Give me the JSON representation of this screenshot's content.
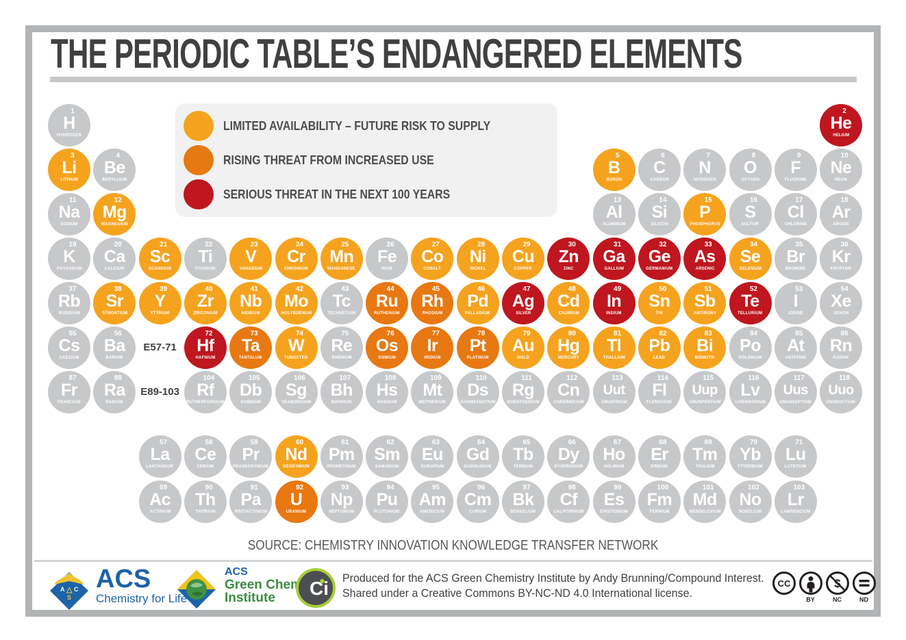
{
  "title": "THE PERIODIC TABLE’S ENDANGERED ELEMENTS",
  "colors": {
    "none": "#c7c8ca",
    "limited": "#f5a31e",
    "rising": "#e87811",
    "serious": "#bf161f"
  },
  "legend": {
    "items": [
      {
        "key": "limited",
        "color": "#f5a31e",
        "label": "LIMITED AVAILABILITY – FUTURE RISK TO SUPPLY"
      },
      {
        "key": "rising",
        "color": "#e87811",
        "label": "RISING THREAT FROM INCREASED USE"
      },
      {
        "key": "serious",
        "color": "#bf161f",
        "label": "SERIOUS THREAT IN THE NEXT 100 YEARS"
      }
    ]
  },
  "row_labels": [
    {
      "text": "E57-71",
      "r": 6,
      "c": 3
    },
    {
      "text": "E89-103",
      "r": 7,
      "c": 3
    }
  ],
  "elements": [
    {
      "n": 1,
      "s": "H",
      "name": "HYDROGEN",
      "r": 1,
      "c": 1,
      "st": "none"
    },
    {
      "n": 2,
      "s": "He",
      "name": "HELIUM",
      "r": 1,
      "c": 18,
      "st": "serious"
    },
    {
      "n": 3,
      "s": "Li",
      "name": "LITHIUM",
      "r": 2,
      "c": 1,
      "st": "limited"
    },
    {
      "n": 4,
      "s": "Be",
      "name": "BERYLLIUM",
      "r": 2,
      "c": 2,
      "st": "none"
    },
    {
      "n": 5,
      "s": "B",
      "name": "BORON",
      "r": 2,
      "c": 13,
      "st": "limited"
    },
    {
      "n": 6,
      "s": "C",
      "name": "CARBON",
      "r": 2,
      "c": 14,
      "st": "none"
    },
    {
      "n": 7,
      "s": "N",
      "name": "NITROGEN",
      "r": 2,
      "c": 15,
      "st": "none"
    },
    {
      "n": 8,
      "s": "O",
      "name": "OXYGEN",
      "r": 2,
      "c": 16,
      "st": "none"
    },
    {
      "n": 9,
      "s": "F",
      "name": "FLUORINE",
      "r": 2,
      "c": 17,
      "st": "none"
    },
    {
      "n": 10,
      "s": "Ne",
      "name": "NEON",
      "r": 2,
      "c": 18,
      "st": "none"
    },
    {
      "n": 11,
      "s": "Na",
      "name": "SODIUM",
      "r": 3,
      "c": 1,
      "st": "none"
    },
    {
      "n": 12,
      "s": "Mg",
      "name": "MAGNESIUM",
      "r": 3,
      "c": 2,
      "st": "limited"
    },
    {
      "n": 13,
      "s": "Al",
      "name": "ALUMINUM",
      "r": 3,
      "c": 13,
      "st": "none"
    },
    {
      "n": 14,
      "s": "Si",
      "name": "SILICON",
      "r": 3,
      "c": 14,
      "st": "none"
    },
    {
      "n": 15,
      "s": "P",
      "name": "PHOSPHORUS",
      "r": 3,
      "c": 15,
      "st": "limited"
    },
    {
      "n": 16,
      "s": "S",
      "name": "SULFUR",
      "r": 3,
      "c": 16,
      "st": "none"
    },
    {
      "n": 17,
      "s": "Cl",
      "name": "CHLORINE",
      "r": 3,
      "c": 17,
      "st": "none"
    },
    {
      "n": 18,
      "s": "Ar",
      "name": "ARGON",
      "r": 3,
      "c": 18,
      "st": "none"
    },
    {
      "n": 19,
      "s": "K",
      "name": "POTASSIUM",
      "r": 4,
      "c": 1,
      "st": "none"
    },
    {
      "n": 20,
      "s": "Ca",
      "name": "CALCIUM",
      "r": 4,
      "c": 2,
      "st": "none"
    },
    {
      "n": 21,
      "s": "Sc",
      "name": "SCANDIUM",
      "r": 4,
      "c": 3,
      "st": "limited"
    },
    {
      "n": 22,
      "s": "Ti",
      "name": "TITANIUM",
      "r": 4,
      "c": 4,
      "st": "none"
    },
    {
      "n": 23,
      "s": "V",
      "name": "VANADIUM",
      "r": 4,
      "c": 5,
      "st": "limited"
    },
    {
      "n": 24,
      "s": "Cr",
      "name": "CHROMIUM",
      "r": 4,
      "c": 6,
      "st": "limited"
    },
    {
      "n": 25,
      "s": "Mn",
      "name": "MANGANESE",
      "r": 4,
      "c": 7,
      "st": "limited"
    },
    {
      "n": 26,
      "s": "Fe",
      "name": "IRON",
      "r": 4,
      "c": 8,
      "st": "none"
    },
    {
      "n": 27,
      "s": "Co",
      "name": "COBALT",
      "r": 4,
      "c": 9,
      "st": "limited"
    },
    {
      "n": 28,
      "s": "Ni",
      "name": "NICKEL",
      "r": 4,
      "c": 10,
      "st": "limited"
    },
    {
      "n": 29,
      "s": "Cu",
      "name": "COPPER",
      "r": 4,
      "c": 11,
      "st": "limited"
    },
    {
      "n": 30,
      "s": "Zn",
      "name": "ZINC",
      "r": 4,
      "c": 12,
      "st": "serious"
    },
    {
      "n": 31,
      "s": "Ga",
      "name": "GALLIUM",
      "r": 4,
      "c": 13,
      "st": "serious"
    },
    {
      "n": 32,
      "s": "Ge",
      "name": "GERMANIUM",
      "r": 4,
      "c": 14,
      "st": "serious"
    },
    {
      "n": 33,
      "s": "As",
      "name": "ARSENIC",
      "r": 4,
      "c": 15,
      "st": "serious"
    },
    {
      "n": 34,
      "s": "Se",
      "name": "SELENIUM",
      "r": 4,
      "c": 16,
      "st": "limited"
    },
    {
      "n": 35,
      "s": "Br",
      "name": "BROMINE",
      "r": 4,
      "c": 17,
      "st": "none"
    },
    {
      "n": 36,
      "s": "Kr",
      "name": "KRYPTON",
      "r": 4,
      "c": 18,
      "st": "none"
    },
    {
      "n": 37,
      "s": "Rb",
      "name": "RUBIDIUM",
      "r": 5,
      "c": 1,
      "st": "none"
    },
    {
      "n": 38,
      "s": "Sr",
      "name": "STRONTIUM",
      "r": 5,
      "c": 2,
      "st": "limited"
    },
    {
      "n": 39,
      "s": "Y",
      "name": "YTTRIUM",
      "r": 5,
      "c": 3,
      "st": "limited"
    },
    {
      "n": 40,
      "s": "Zr",
      "name": "ZIRCONIUM",
      "r": 5,
      "c": 4,
      "st": "limited"
    },
    {
      "n": 41,
      "s": "Nb",
      "name": "NIOBIUM",
      "r": 5,
      "c": 5,
      "st": "limited"
    },
    {
      "n": 42,
      "s": "Mo",
      "name": "MOLYBDENUM",
      "r": 5,
      "c": 6,
      "st": "limited"
    },
    {
      "n": 43,
      "s": "Tc",
      "name": "TECHNETIUM",
      "r": 5,
      "c": 7,
      "st": "none"
    },
    {
      "n": 44,
      "s": "Ru",
      "name": "RUTHENIUM",
      "r": 5,
      "c": 8,
      "st": "rising"
    },
    {
      "n": 45,
      "s": "Rh",
      "name": "RHODIUM",
      "r": 5,
      "c": 9,
      "st": "rising"
    },
    {
      "n": 46,
      "s": "Pd",
      "name": "PALLADIUM",
      "r": 5,
      "c": 10,
      "st": "limited"
    },
    {
      "n": 47,
      "s": "Ag",
      "name": "SILVER",
      "r": 5,
      "c": 11,
      "st": "serious"
    },
    {
      "n": 48,
      "s": "Cd",
      "name": "CADMIUM",
      "r": 5,
      "c": 12,
      "st": "limited"
    },
    {
      "n": 49,
      "s": "In",
      "name": "INDIUM",
      "r": 5,
      "c": 13,
      "st": "serious"
    },
    {
      "n": 50,
      "s": "Sn",
      "name": "TIN",
      "r": 5,
      "c": 14,
      "st": "limited"
    },
    {
      "n": 51,
      "s": "Sb",
      "name": "ANTIMONY",
      "r": 5,
      "c": 15,
      "st": "limited"
    },
    {
      "n": 52,
      "s": "Te",
      "name": "TELLURIUM",
      "r": 5,
      "c": 16,
      "st": "serious"
    },
    {
      "n": 53,
      "s": "I",
      "name": "IODINE",
      "r": 5,
      "c": 17,
      "st": "none"
    },
    {
      "n": 54,
      "s": "Xe",
      "name": "XENON",
      "r": 5,
      "c": 18,
      "st": "none"
    },
    {
      "n": 55,
      "s": "Cs",
      "name": "CAESIUM",
      "r": 6,
      "c": 1,
      "st": "none"
    },
    {
      "n": 56,
      "s": "Ba",
      "name": "BARIUM",
      "r": 6,
      "c": 2,
      "st": "none"
    },
    {
      "n": 72,
      "s": "Hf",
      "name": "HAFNIUM",
      "r": 6,
      "c": 4,
      "st": "serious"
    },
    {
      "n": 73,
      "s": "Ta",
      "name": "TANTALUM",
      "r": 6,
      "c": 5,
      "st": "rising"
    },
    {
      "n": 74,
      "s": "W",
      "name": "TUNGSTEN",
      "r": 6,
      "c": 6,
      "st": "limited"
    },
    {
      "n": 75,
      "s": "Re",
      "name": "RHENIUM",
      "r": 6,
      "c": 7,
      "st": "none"
    },
    {
      "n": 76,
      "s": "Os",
      "name": "OSMIUM",
      "r": 6,
      "c": 8,
      "st": "rising"
    },
    {
      "n": 77,
      "s": "Ir",
      "name": "IRIDIUM",
      "r": 6,
      "c": 9,
      "st": "rising"
    },
    {
      "n": 78,
      "s": "Pt",
      "name": "PLATINUM",
      "r": 6,
      "c": 10,
      "st": "rising"
    },
    {
      "n": 79,
      "s": "Au",
      "name": "GOLD",
      "r": 6,
      "c": 11,
      "st": "limited"
    },
    {
      "n": 80,
      "s": "Hg",
      "name": "MERCURY",
      "r": 6,
      "c": 12,
      "st": "limited"
    },
    {
      "n": 81,
      "s": "Tl",
      "name": "THALLIUM",
      "r": 6,
      "c": 13,
      "st": "limited"
    },
    {
      "n": 82,
      "s": "Pb",
      "name": "LEAD",
      "r": 6,
      "c": 14,
      "st": "limited"
    },
    {
      "n": 83,
      "s": "Bi",
      "name": "BISMUTH",
      "r": 6,
      "c": 15,
      "st": "limited"
    },
    {
      "n": 84,
      "s": "Po",
      "name": "POLONIUM",
      "r": 6,
      "c": 16,
      "st": "none"
    },
    {
      "n": 85,
      "s": "At",
      "name": "ASTATINE",
      "r": 6,
      "c": 17,
      "st": "none"
    },
    {
      "n": 86,
      "s": "Rn",
      "name": "RADON",
      "r": 6,
      "c": 18,
      "st": "none"
    },
    {
      "n": 87,
      "s": "Fr",
      "name": "FRANCIUM",
      "r": 7,
      "c": 1,
      "st": "none"
    },
    {
      "n": 88,
      "s": "Ra",
      "name": "RADIUM",
      "r": 7,
      "c": 2,
      "st": "none"
    },
    {
      "n": 104,
      "s": "Rf",
      "name": "RUTHERFORDIUM",
      "r": 7,
      "c": 4,
      "st": "none"
    },
    {
      "n": 105,
      "s": "Db",
      "name": "DUBNIUM",
      "r": 7,
      "c": 5,
      "st": "none"
    },
    {
      "n": 106,
      "s": "Sg",
      "name": "SEABORGIUM",
      "r": 7,
      "c": 6,
      "st": "none"
    },
    {
      "n": 107,
      "s": "Bh",
      "name": "BOHRIUM",
      "r": 7,
      "c": 7,
      "st": "none"
    },
    {
      "n": 108,
      "s": "Hs",
      "name": "HASSIUM",
      "r": 7,
      "c": 8,
      "st": "none"
    },
    {
      "n": 109,
      "s": "Mt",
      "name": "MEITNERIUM",
      "r": 7,
      "c": 9,
      "st": "none"
    },
    {
      "n": 110,
      "s": "Ds",
      "name": "DARMSTADTIUM",
      "r": 7,
      "c": 10,
      "st": "none"
    },
    {
      "n": 111,
      "s": "Rg",
      "name": "ROENTGENIUM",
      "r": 7,
      "c": 11,
      "st": "none"
    },
    {
      "n": 112,
      "s": "Cn",
      "name": "COPERNICIUM",
      "r": 7,
      "c": 12,
      "st": "none"
    },
    {
      "n": 113,
      "s": "Uut",
      "name": "UNUNTRIUM",
      "r": 7,
      "c": 13,
      "st": "none"
    },
    {
      "n": 114,
      "s": "Fl",
      "name": "FLEROVIUM",
      "r": 7,
      "c": 14,
      "st": "none"
    },
    {
      "n": 115,
      "s": "Uup",
      "name": "UNUNPENTIUM",
      "r": 7,
      "c": 15,
      "st": "none"
    },
    {
      "n": 116,
      "s": "Lv",
      "name": "LIVERMORIUM",
      "r": 7,
      "c": 16,
      "st": "none"
    },
    {
      "n": 117,
      "s": "Uus",
      "name": "UNUNSEPTIUM",
      "r": 7,
      "c": 17,
      "st": "none"
    },
    {
      "n": 118,
      "s": "Uuo",
      "name": "UNUNOCTIUM",
      "r": 7,
      "c": 18,
      "st": "none"
    },
    {
      "n": 57,
      "s": "La",
      "name": "LANTHANUM",
      "r": 8,
      "c": 3,
      "st": "none"
    },
    {
      "n": 58,
      "s": "Ce",
      "name": "CERIUM",
      "r": 8,
      "c": 4,
      "st": "none"
    },
    {
      "n": 59,
      "s": "Pr",
      "name": "PRASEODYMIUM",
      "r": 8,
      "c": 5,
      "st": "none"
    },
    {
      "n": 60,
      "s": "Nd",
      "name": "NEODYMIUM",
      "r": 8,
      "c": 6,
      "st": "limited"
    },
    {
      "n": 61,
      "s": "Pm",
      "name": "PROMETHIUM",
      "r": 8,
      "c": 7,
      "st": "none"
    },
    {
      "n": 62,
      "s": "Sm",
      "name": "SAMARIUM",
      "r": 8,
      "c": 8,
      "st": "none"
    },
    {
      "n": 63,
      "s": "Eu",
      "name": "EUROPIUM",
      "r": 8,
      "c": 9,
      "st": "none"
    },
    {
      "n": 64,
      "s": "Gd",
      "name": "GADOLINIUM",
      "r": 8,
      "c": 10,
      "st": "none"
    },
    {
      "n": 65,
      "s": "Tb",
      "name": "TERBIUM",
      "r": 8,
      "c": 11,
      "st": "none"
    },
    {
      "n": 66,
      "s": "Dy",
      "name": "DYSPROSIUM",
      "r": 8,
      "c": 12,
      "st": "none"
    },
    {
      "n": 67,
      "s": "Ho",
      "name": "HOLMIUM",
      "r": 8,
      "c": 13,
      "st": "none"
    },
    {
      "n": 68,
      "s": "Er",
      "name": "ERBIUM",
      "r": 8,
      "c": 14,
      "st": "none"
    },
    {
      "n": 69,
      "s": "Tm",
      "name": "THULIUM",
      "r": 8,
      "c": 15,
      "st": "none"
    },
    {
      "n": 70,
      "s": "Yb",
      "name": "YTTERBIUM",
      "r": 8,
      "c": 16,
      "st": "none"
    },
    {
      "n": 71,
      "s": "Lu",
      "name": "LUTETIUM",
      "r": 8,
      "c": 17,
      "st": "none"
    },
    {
      "n": 89,
      "s": "Ac",
      "name": "ACTINIUM",
      "r": 9,
      "c": 3,
      "st": "none"
    },
    {
      "n": 90,
      "s": "Th",
      "name": "THORIUM",
      "r": 9,
      "c": 4,
      "st": "none"
    },
    {
      "n": 91,
      "s": "Pa",
      "name": "PROTACTINIUM",
      "r": 9,
      "c": 5,
      "st": "none"
    },
    {
      "n": 92,
      "s": "U",
      "name": "URANIUM",
      "r": 9,
      "c": 6,
      "st": "rising"
    },
    {
      "n": 93,
      "s": "Np",
      "name": "NEPTUNIUM",
      "r": 9,
      "c": 7,
      "st": "none"
    },
    {
      "n": 94,
      "s": "Pu",
      "name": "PLUTONIUM",
      "r": 9,
      "c": 8,
      "st": "none"
    },
    {
      "n": 95,
      "s": "Am",
      "name": "AMERICIUM",
      "r": 9,
      "c": 9,
      "st": "none"
    },
    {
      "n": 96,
      "s": "Cm",
      "name": "CURIUM",
      "r": 9,
      "c": 10,
      "st": "none"
    },
    {
      "n": 97,
      "s": "Bk",
      "name": "BERKELIUM",
      "r": 9,
      "c": 11,
      "st": "none"
    },
    {
      "n": 98,
      "s": "Cf",
      "name": "CALIFORNIUM",
      "r": 9,
      "c": 12,
      "st": "none"
    },
    {
      "n": 99,
      "s": "Es",
      "name": "EINSTEINIUM",
      "r": 9,
      "c": 13,
      "st": "none"
    },
    {
      "n": 100,
      "s": "Fm",
      "name": "FERMIUM",
      "r": 9,
      "c": 14,
      "st": "none"
    },
    {
      "n": 101,
      "s": "Md",
      "name": "MENDELEVIUM",
      "r": 9,
      "c": 15,
      "st": "none"
    },
    {
      "n": 102,
      "s": "No",
      "name": "NOBELIUM",
      "r": 9,
      "c": 16,
      "st": "none"
    },
    {
      "n": 103,
      "s": "Lr",
      "name": "LAWRENCIUM",
      "r": 9,
      "c": 17,
      "st": "none"
    }
  ],
  "source": "SOURCE: CHEMISTRY INNOVATION KNOWLEDGE TRANSFER NETWORK",
  "footer": {
    "acs": {
      "name": "ACS",
      "tagline": "Chemistry for Life"
    },
    "gci": {
      "line1": "ACS",
      "line2": "Green Chemistry",
      "line3": "Institute"
    },
    "ci_label": "Ci",
    "credit_line1": "Produced for the ACS Green Chemistry Institute by Andy Brunning/Compound Interest.",
    "credit_line2": "Shared under a Creative Commons BY-NC-ND 4.0 International license.",
    "cc": [
      {
        "glyph": "CC",
        "label": ""
      },
      {
        "glyph": "BY",
        "label": "BY"
      },
      {
        "glyph": "NC",
        "label": "NC"
      },
      {
        "glyph": "ND",
        "label": "ND"
      }
    ]
  }
}
